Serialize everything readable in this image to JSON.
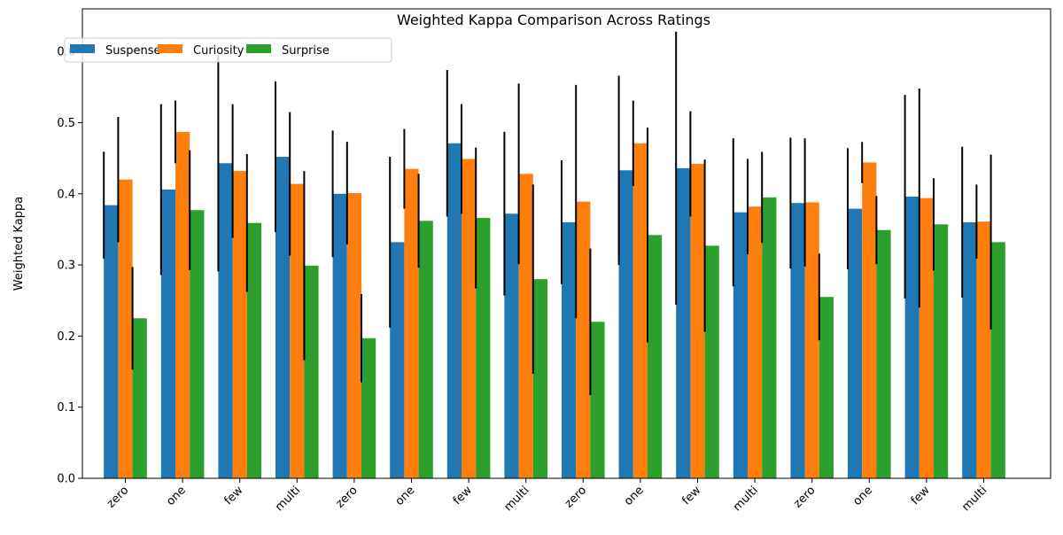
{
  "chart_data": {
    "type": "bar",
    "title": "Weighted Kappa Comparison Across Ratings",
    "xlabel": "",
    "ylabel": "Weighted Kappa",
    "ylim": [
      0,
      0.66
    ],
    "yticks": [
      "0.0",
      "0.1",
      "0.2",
      "0.3",
      "0.4",
      "0.5",
      "0.6"
    ],
    "ytick_values": [
      0.0,
      0.1,
      0.2,
      0.3,
      0.4,
      0.5,
      0.6
    ],
    "categories": [
      "zero",
      "one",
      "few",
      "multi",
      "zero",
      "one",
      "few",
      "multi",
      "zero",
      "one",
      "few",
      "multi",
      "zero",
      "one",
      "few",
      "multi"
    ],
    "grid": false,
    "legend_position": "top-left",
    "error_bars": true,
    "series": [
      {
        "name": "Suspense",
        "color": "#1f77b4",
        "values": [
          0.384,
          0.406,
          0.443,
          0.452,
          0.4,
          0.332,
          0.471,
          0.372,
          0.36,
          0.433,
          0.436,
          0.374,
          0.387,
          0.379,
          0.396,
          0.36
        ],
        "errors": [
          0.075,
          0.12,
          0.152,
          0.106,
          0.089,
          0.12,
          0.103,
          0.115,
          0.087,
          0.133,
          0.192,
          0.104,
          0.092,
          0.085,
          0.143,
          0.106
        ]
      },
      {
        "name": "Curiosity",
        "color": "#ff7f0e",
        "values": [
          0.42,
          0.487,
          0.432,
          0.414,
          0.401,
          0.435,
          0.449,
          0.428,
          0.389,
          0.471,
          0.442,
          0.382,
          0.388,
          0.444,
          0.394,
          0.361
        ],
        "errors": [
          0.088,
          0.044,
          0.094,
          0.101,
          0.072,
          0.056,
          0.077,
          0.127,
          0.164,
          0.06,
          0.074,
          0.067,
          0.09,
          0.029,
          0.154,
          0.052
        ]
      },
      {
        "name": "Surprise",
        "color": "#2ca02c",
        "values": [
          0.225,
          0.377,
          0.359,
          0.299,
          0.197,
          0.362,
          0.366,
          0.28,
          0.22,
          0.342,
          0.327,
          0.395,
          0.255,
          0.349,
          0.357,
          0.332
        ],
        "errors": [
          0.072,
          0.084,
          0.097,
          0.133,
          0.062,
          0.066,
          0.099,
          0.133,
          0.103,
          0.151,
          0.121,
          0.064,
          0.061,
          0.048,
          0.065,
          0.123
        ]
      }
    ]
  }
}
